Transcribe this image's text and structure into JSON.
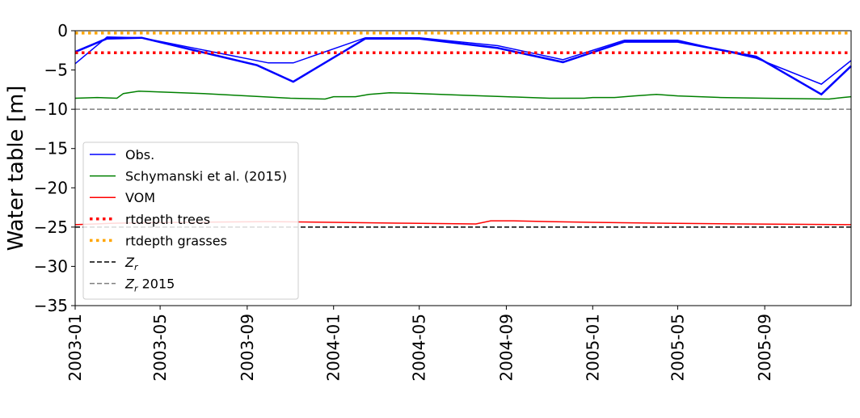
{
  "chart_data": {
    "type": "line",
    "title": "",
    "xlabel": "",
    "ylabel": "Water table [m]",
    "ylim": [
      -35,
      0
    ],
    "yticks": [
      0,
      -5,
      -10,
      -15,
      -20,
      -25,
      -30,
      -35
    ],
    "ytick_labels": [
      "0",
      "−5",
      "−10",
      "−15",
      "−20",
      "−25",
      "−30",
      "−35"
    ],
    "xlim": [
      "2003-01-01",
      "2006-01-01"
    ],
    "xticks": [
      "2003-01-01",
      "2003-05-01",
      "2003-09-01",
      "2004-01-01",
      "2004-05-01",
      "2004-09-01",
      "2005-01-01",
      "2005-05-01",
      "2005-09-01"
    ],
    "xtick_labels": [
      "2003-01",
      "2003-05",
      "2003-09",
      "2004-01",
      "2004-05",
      "2004-09",
      "2005-01",
      "2005-05",
      "2005-09"
    ],
    "grid": false,
    "legend_position": "lower-left",
    "series": [
      {
        "name": "Obs.",
        "color": "#0000ff",
        "style": "solid",
        "x": [
          "2003-01-01",
          "2003-02-15",
          "2003-04-05",
          "2003-10-01",
          "2003-11-05",
          "2004-02-15",
          "2004-05-01",
          "2004-08-20",
          "2004-11-20",
          "2005-02-15",
          "2005-05-01",
          "2005-08-20",
          "2005-11-20",
          "2006-01-01"
        ],
        "y": [
          -4.2,
          -0.8,
          -0.9,
          -4.1,
          -4.1,
          -0.9,
          -0.9,
          -1.9,
          -3.7,
          -1.2,
          -1.2,
          -3.5,
          -6.8,
          -3.8
        ]
      },
      {
        "name": "",
        "color": "#0000ff",
        "style": "solid-thick",
        "x": [
          "2003-01-01",
          "2003-02-15",
          "2003-04-05",
          "2003-09-15",
          "2003-11-05",
          "2004-02-15",
          "2004-05-01",
          "2004-08-20",
          "2004-11-20",
          "2005-02-15",
          "2005-05-01",
          "2005-08-20",
          "2005-11-20",
          "2006-01-01"
        ],
        "y": [
          -2.7,
          -1.0,
          -0.9,
          -4.4,
          -6.5,
          -1.0,
          -1.0,
          -2.2,
          -4.0,
          -1.4,
          -1.4,
          -3.3,
          -8.1,
          -4.5
        ]
      },
      {
        "name": "Schymanski et al. (2015)",
        "color": "#008000",
        "style": "solid",
        "x": [
          "2003-01-01",
          "2003-02-01",
          "2003-03-01",
          "2003-03-10",
          "2003-04-01",
          "2003-05-01",
          "2003-07-01",
          "2003-09-01",
          "2003-11-01",
          "2003-12-20",
          "2004-01-01",
          "2004-02-01",
          "2004-02-20",
          "2004-03-20",
          "2004-05-01",
          "2004-07-01",
          "2004-09-01",
          "2004-11-01",
          "2004-12-20",
          "2005-01-01",
          "2005-02-01",
          "2005-03-01",
          "2005-04-01",
          "2005-05-01",
          "2005-07-01",
          "2005-09-01",
          "2005-12-01",
          "2005-12-20",
          "2006-01-01"
        ],
        "y": [
          -8.6,
          -8.5,
          -8.6,
          -8.0,
          -7.7,
          -7.8,
          -8.0,
          -8.3,
          -8.6,
          -8.7,
          -8.4,
          -8.4,
          -8.1,
          -7.9,
          -8.0,
          -8.2,
          -8.4,
          -8.6,
          -8.6,
          -8.5,
          -8.5,
          -8.3,
          -8.1,
          -8.3,
          -8.5,
          -8.6,
          -8.7,
          -8.5,
          -8.4
        ]
      },
      {
        "name": "VOM",
        "color": "#ff0000",
        "style": "solid",
        "x": [
          "2003-01-01",
          "2003-03-01",
          "2003-06-01",
          "2003-10-01",
          "2004-01-01",
          "2004-04-01",
          "2004-07-20",
          "2004-08-10",
          "2004-09-10",
          "2004-11-01",
          "2005-01-01",
          "2005-04-01",
          "2005-08-01",
          "2006-01-01"
        ],
        "y": [
          -24.7,
          -24.5,
          -24.4,
          -24.3,
          -24.4,
          -24.5,
          -24.6,
          -24.2,
          -24.2,
          -24.3,
          -24.4,
          -24.5,
          -24.6,
          -24.7
        ]
      },
      {
        "name": "rtdepth trees",
        "color": "#ff0000",
        "style": "dotted",
        "x": [
          "2003-01-01",
          "2006-01-01"
        ],
        "y": [
          -2.8,
          -2.8
        ]
      },
      {
        "name": "rtdepth grasses",
        "color": "#ffa500",
        "style": "dotted",
        "x": [
          "2003-01-01",
          "2006-01-01"
        ],
        "y": [
          -0.3,
          -0.3
        ]
      },
      {
        "name": "Z_r",
        "color": "#000000",
        "style": "dashed",
        "x": [
          "2003-01-01",
          "2006-01-01"
        ],
        "y": [
          -25.0,
          -25.0
        ]
      },
      {
        "name": "Z_r 2015",
        "color": "#808080",
        "style": "dashed",
        "x": [
          "2003-01-01",
          "2006-01-01"
        ],
        "y": [
          -10.0,
          -10.0
        ]
      }
    ],
    "legend": [
      {
        "label": "Obs.",
        "color": "#0000ff",
        "style": "solid"
      },
      {
        "label": "Schymanski et al. (2015)",
        "color": "#008000",
        "style": "solid"
      },
      {
        "label": "VOM",
        "color": "#ff0000",
        "style": "solid"
      },
      {
        "label": "rtdepth trees",
        "color": "#ff0000",
        "style": "dotted"
      },
      {
        "label": "rtdepth grasses",
        "color": "#ffa500",
        "style": "dotted"
      },
      {
        "label": "Z",
        "sub": "r",
        "suffix": "",
        "color": "#000000",
        "style": "dashed"
      },
      {
        "label": "Z",
        "sub": "r",
        "suffix": " 2015",
        "color": "#808080",
        "style": "dashed"
      }
    ]
  }
}
